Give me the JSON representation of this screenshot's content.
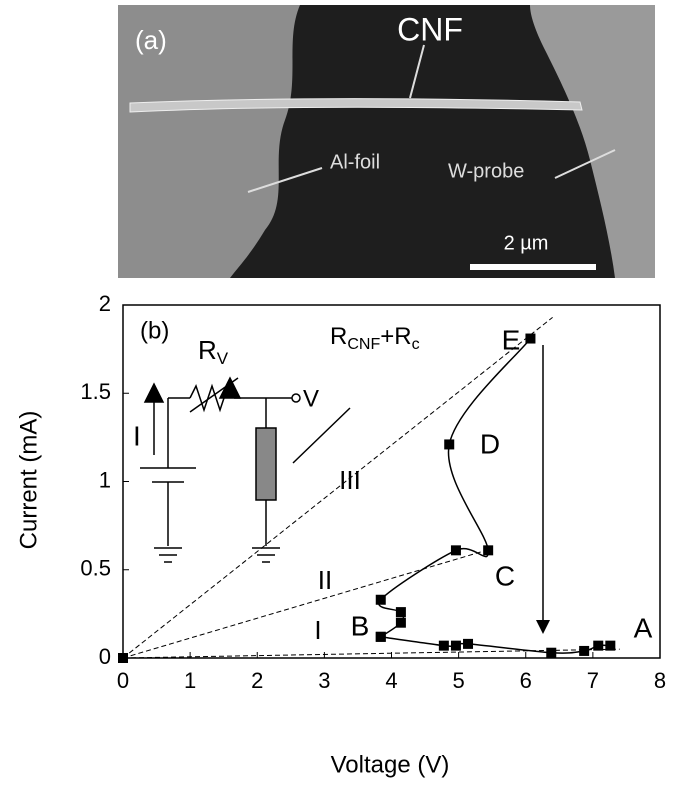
{
  "image_panel": {
    "label": "(a)",
    "fiber_label": "CNF",
    "left_label": "Al-foil",
    "right_label": "W-probe",
    "scale_bar": "2 µm"
  },
  "chart_data": {
    "type": "scatter",
    "panel_label": "(b)",
    "x_label": "Voltage (V)",
    "y_label": "Current (mA)",
    "xlim": [
      0,
      8
    ],
    "ylim": [
      0,
      2
    ],
    "xticks": [
      0,
      1,
      2,
      3,
      4,
      5,
      6,
      7,
      8
    ],
    "yticks": [
      0,
      0.5,
      1,
      1.5,
      2
    ],
    "color": "#000000",
    "series": [
      {
        "x": [
          0
        ],
        "values": [
          0
        ]
      },
      {
        "x": [
          3.84,
          4.14,
          4.14,
          3.84,
          4.96,
          5.44,
          4.86,
          6.07
        ],
        "values": [
          0.12,
          0.2,
          0.26,
          0.33,
          0.61,
          0.61,
          1.21,
          1.81
        ]
      },
      {
        "x": [
          3.84,
          4.78,
          4.96,
          5.14,
          6.38,
          6.87,
          7.08,
          7.26
        ],
        "values": [
          0.12,
          0.07,
          0.07,
          0.08,
          0.03,
          0.04,
          0.07,
          0.07
        ]
      }
    ],
    "reference_lines": [
      {
        "label": "I",
        "x": [
          0,
          7.4
        ],
        "values": [
          0,
          0.05
        ]
      },
      {
        "label": "II",
        "x": [
          0,
          5.5
        ],
        "values": [
          0,
          0.62
        ]
      },
      {
        "label": "III",
        "x": [
          0,
          6.4
        ],
        "values": [
          0,
          1.93
        ]
      }
    ],
    "point_labels": [
      "A",
      "B",
      "C",
      "D",
      "E"
    ],
    "inset": {
      "resistor": "R",
      "resistor_sub": "V",
      "current": "I",
      "voltage": "V",
      "load": [
        "R",
        "CNF",
        "+R",
        "c"
      ]
    }
  }
}
